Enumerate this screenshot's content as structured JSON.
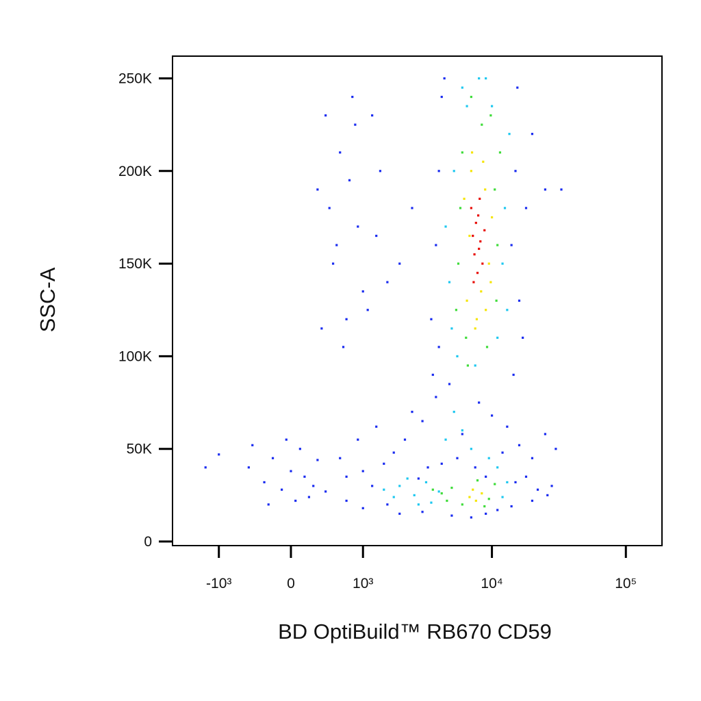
{
  "chart_data": {
    "type": "scatter",
    "x_label": "BD OptiBuild™ RB670 CD59",
    "y_label": "SSC-A",
    "xscale": "biexponential",
    "xlim": [
      -2380,
      186000
    ],
    "ylim": [
      -2200,
      262000
    ],
    "xticks": [
      {
        "value": -1000,
        "label": "-10³"
      },
      0,
      {
        "value": 1000,
        "label": "10³"
      },
      {
        "value": 10000,
        "label": "10⁴"
      },
      {
        "value": 100000,
        "label": "10⁵"
      }
    ],
    "yticks": [
      0,
      {
        "value": 50000,
        "label": "50K"
      },
      {
        "value": 100000,
        "label": "100K"
      },
      {
        "value": 150000,
        "label": "150K"
      },
      {
        "value": 200000,
        "label": "200K"
      },
      {
        "value": 250000,
        "label": "250K"
      }
    ],
    "grid": false,
    "series": [
      {
        "color": "#1a2cf0",
        "x": [
          300,
          400,
          450,
          500,
          600,
          700,
          800,
          900,
          1000,
          1200,
          1400,
          1600,
          2000,
          2500,
          350,
          550,
          650,
          750,
          850,
          1100,
          1300,
          3500,
          3800,
          4000,
          4200,
          14000,
          15000,
          16000,
          18000,
          20000,
          25000,
          3600,
          4400,
          15500,
          17000,
          4000,
          14500,
          600,
          900,
          1300,
          1800,
          2500,
          3000,
          3800,
          4800,
          6000,
          8000,
          10000,
          13000,
          16000,
          20000,
          25000,
          30000,
          1000,
          1500,
          2200,
          3300,
          5500,
          7500,
          12000,
          18000,
          28000,
          700,
          1200,
          2800,
          4200,
          9000,
          15000,
          22000,
          -500,
          -300,
          -200,
          -100,
          0,
          100,
          200,
          150,
          300,
          -50,
          250,
          400,
          -250,
          50,
          1000,
          2000,
          3000,
          5000,
          7000,
          9000,
          11000,
          14000,
          20000,
          26000,
          700,
          1600,
          -1300,
          -1000,
          -450,
          33000
        ],
        "values": [
          190000,
          230000,
          180000,
          150000,
          210000,
          120000,
          240000,
          170000,
          135000,
          230000,
          200000,
          140000,
          150000,
          180000,
          115000,
          160000,
          105000,
          195000,
          225000,
          125000,
          165000,
          120000,
          160000,
          200000,
          240000,
          160000,
          200000,
          130000,
          180000,
          220000,
          190000,
          90000,
          250000,
          245000,
          110000,
          105000,
          90000,
          45000,
          55000,
          62000,
          48000,
          70000,
          65000,
          78000,
          85000,
          58000,
          75000,
          68000,
          62000,
          52000,
          45000,
          58000,
          50000,
          38000,
          42000,
          55000,
          40000,
          45000,
          40000,
          48000,
          35000,
          30000,
          35000,
          30000,
          34000,
          42000,
          35000,
          32000,
          28000,
          40000,
          32000,
          45000,
          28000,
          38000,
          50000,
          24000,
          35000,
          44000,
          55000,
          30000,
          27000,
          20000,
          22000,
          18000,
          15000,
          16000,
          14000,
          13000,
          15000,
          17000,
          19000,
          22000,
          25000,
          22000,
          20000,
          40000,
          47000,
          52000,
          190000
        ]
      },
      {
        "color": "#1ec8f0",
        "x": [
          4800,
          5200,
          12000,
          13500,
          6000,
          9000,
          11000,
          5500,
          7500,
          12500,
          4500,
          10000,
          8000,
          6500,
          13000,
          5000,
          1500,
          2000,
          2600,
          3200,
          4000,
          1800,
          2300,
          3500,
          12000,
          13000,
          11000,
          2800,
          9500,
          6000,
          7000,
          4500,
          5200
        ],
        "values": [
          140000,
          200000,
          150000,
          220000,
          245000,
          250000,
          110000,
          100000,
          95000,
          180000,
          170000,
          235000,
          250000,
          235000,
          125000,
          115000,
          28000,
          30000,
          25000,
          32000,
          27000,
          24000,
          34000,
          21000,
          24000,
          32000,
          40000,
          20000,
          45000,
          60000,
          50000,
          55000,
          70000
        ]
      },
      {
        "color": "#3fdc3a",
        "x": [
          5600,
          6000,
          9800,
          11000,
          6400,
          10500,
          5800,
          7000,
          9200,
          11500,
          6600,
          8400,
          5400,
          10800,
          4200,
          5000,
          6000,
          9500,
          10500,
          3600,
          7800,
          4600,
          8800
        ],
        "values": [
          150000,
          210000,
          230000,
          160000,
          110000,
          190000,
          180000,
          240000,
          105000,
          210000,
          95000,
          225000,
          125000,
          130000,
          26000,
          29000,
          20000,
          23000,
          31000,
          28000,
          33000,
          22000,
          19000
        ]
      },
      {
        "color": "#f5e50a",
        "x": [
          6500,
          7000,
          8900,
          9500,
          6800,
          7700,
          8300,
          10000,
          7100,
          9000,
          6200,
          8600,
          7500,
          9800,
          6800,
          7600,
          8400,
          7200
        ],
        "values": [
          130000,
          200000,
          190000,
          150000,
          165000,
          120000,
          135000,
          175000,
          210000,
          125000,
          185000,
          205000,
          115000,
          140000,
          24000,
          22000,
          26000,
          28000
        ]
      },
      {
        "color": "#e8100a",
        "x": [
          7200,
          8000,
          7600,
          8500,
          7000,
          7800,
          8200,
          7400,
          8800,
          7900,
          7300,
          8100
        ],
        "values": [
          165000,
          158000,
          172000,
          150000,
          180000,
          145000,
          162000,
          155000,
          168000,
          176000,
          140000,
          185000
        ]
      }
    ]
  }
}
